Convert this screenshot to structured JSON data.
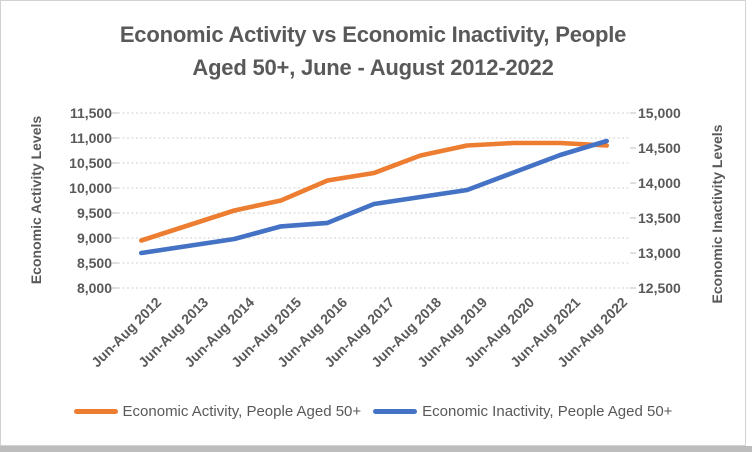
{
  "title": {
    "full": "Economic Activity vs Economic Inactivity, People Aged 50+, June - August 2012-2022",
    "lines": [
      "Economic Activity vs Economic Inactivity, People",
      "Aged 50+, June - August 2012-2022"
    ]
  },
  "left_axis": {
    "title": "Economic Activity Levels",
    "ticks": [
      "11,500",
      "11,000",
      "10,500",
      "10,000",
      "9,500",
      "9,000",
      "8,500",
      "8,000"
    ],
    "min": 8000,
    "max": 11500,
    "step": 500
  },
  "right_axis": {
    "title": "Economic Inactivity Levels",
    "ticks": [
      "15,000",
      "14,500",
      "14,000",
      "13,500",
      "13,000",
      "12,500"
    ],
    "min": 12500,
    "max": 15000,
    "step": 500
  },
  "x_axis": {
    "categories": [
      "Jun-Aug 2012",
      "Jun-Aug 2013",
      "Jun-Aug 2014",
      "Jun-Aug 2015",
      "Jun-Aug 2016",
      "Jun-Aug 2017",
      "Jun-Aug 2018",
      "Jun-Aug 2019",
      "Jun-Aug 2020",
      "Jun-Aug 2021",
      "Jun-Aug 2022"
    ]
  },
  "legend": [
    {
      "label": "Economic Activity, People Aged 50+",
      "color": "#ED7D31"
    },
    {
      "label": "Economic Inactivity, People Aged 50+",
      "color": "#4472C4"
    }
  ],
  "colors": {
    "activity_line": "#ED7D31",
    "inactivity_line": "#4472C4",
    "text": "#595959",
    "gridline": "#D2D2D2",
    "frame_border": "#D4D1D1",
    "bottom_strip": "#BDBDBD"
  },
  "chart_data": {
    "type": "line",
    "title": "Economic Activity vs Economic Inactivity, People Aged 50+, June - August 2012-2022",
    "categories": [
      "Jun-Aug 2012",
      "Jun-Aug 2013",
      "Jun-Aug 2014",
      "Jun-Aug 2015",
      "Jun-Aug 2016",
      "Jun-Aug 2017",
      "Jun-Aug 2018",
      "Jun-Aug 2019",
      "Jun-Aug 2020",
      "Jun-Aug 2021",
      "Jun-Aug 2022"
    ],
    "series": [
      {
        "name": "Economic Activity, People Aged 50+",
        "axis": "left",
        "color": "#ED7D31",
        "values": [
          8950,
          9250,
          9550,
          9750,
          10150,
          10300,
          10650,
          10850,
          10900,
          10900,
          10850
        ]
      },
      {
        "name": "Economic Inactivity, People Aged 50+",
        "axis": "right",
        "color": "#4472C4",
        "values": [
          13000,
          13100,
          13200,
          13380,
          13430,
          13700,
          13800,
          13900,
          14150,
          14400,
          14600
        ]
      }
    ],
    "left_ylabel": "Economic Activity Levels",
    "right_ylabel": "Economic Inactivity Levels",
    "left_ylim": [
      8000,
      11500
    ],
    "right_ylim": [
      12500,
      15000
    ],
    "grid": true,
    "gridline_style": "dotted",
    "legend_position": "bottom"
  }
}
